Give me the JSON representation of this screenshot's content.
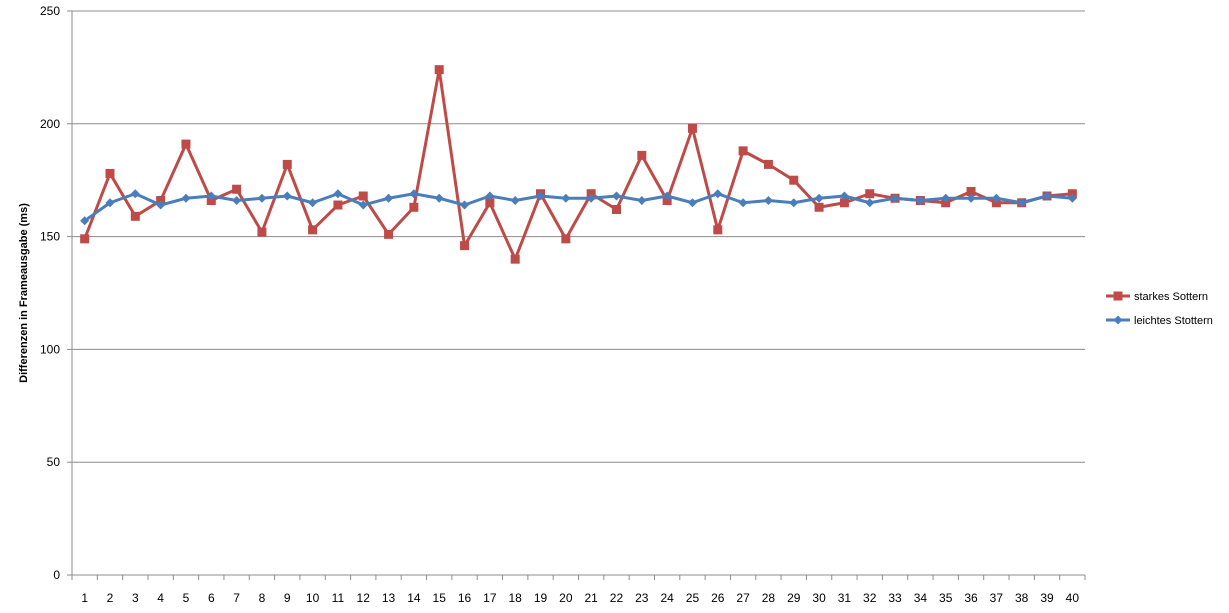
{
  "chart_data": {
    "type": "line",
    "title": "",
    "xlabel": "",
    "ylabel": "Differenzen in Frameausgabe (ms)",
    "ylim": [
      0,
      250
    ],
    "yticks": [
      0,
      50,
      100,
      150,
      200,
      250
    ],
    "grid": true,
    "legend_position": "right",
    "categories": [
      "1",
      "2",
      "3",
      "4",
      "5",
      "6",
      "7",
      "8",
      "9",
      "10",
      "11",
      "12",
      "13",
      "14",
      "15",
      "16",
      "17",
      "18",
      "19",
      "20",
      "21",
      "22",
      "23",
      "24",
      "25",
      "26",
      "27",
      "28",
      "29",
      "30",
      "31",
      "32",
      "33",
      "34",
      "35",
      "36",
      "37",
      "38",
      "39",
      "40"
    ],
    "series": [
      {
        "name": "starkes Sottern",
        "color": "#be4b48",
        "marker": "square",
        "values": [
          149,
          178,
          159,
          166,
          191,
          166,
          171,
          152,
          182,
          153,
          164,
          168,
          151,
          163,
          224,
          146,
          165,
          140,
          169,
          149,
          169,
          162,
          186,
          166,
          198,
          153,
          188,
          182,
          175,
          163,
          165,
          169,
          167,
          166,
          165,
          170,
          165,
          165,
          168,
          169
        ]
      },
      {
        "name": "leichtes Stottern",
        "color": "#4a7ebb",
        "marker": "diamond",
        "values": [
          157,
          165,
          169,
          164,
          167,
          168,
          166,
          167,
          168,
          165,
          169,
          164,
          167,
          169,
          167,
          164,
          168,
          166,
          168,
          167,
          167,
          168,
          166,
          168,
          165,
          169,
          165,
          166,
          165,
          167,
          168,
          165,
          167,
          166,
          167,
          167,
          167,
          165,
          168,
          167
        ]
      }
    ]
  }
}
